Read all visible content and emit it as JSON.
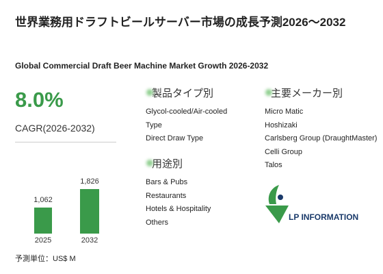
{
  "header": {
    "title": "世界業務用ドラフトビールサーバー市場の成長予測2026～2032",
    "subtitle": "Global Commercial Draft Beer Machine Market Growth 2026-2032"
  },
  "cagr": {
    "value": "8.0%",
    "label": "CAGR(2026-2032)"
  },
  "chart_data": {
    "type": "bar",
    "categories": [
      "2025",
      "2032"
    ],
    "values": [
      1062,
      1826
    ],
    "value_labels": [
      "1,062",
      "1,826"
    ],
    "color": "#3a9a4a",
    "unit_note": "予測単位：US$ M"
  },
  "segments": [
    {
      "title": "製品タイプ別",
      "items": [
        "Glycol-cooled/Air-cooled Type",
        "Direct Draw Type"
      ]
    },
    {
      "title": "用途別",
      "items": [
        "Bars & Pubs",
        "Restaurants",
        "Hotels & Hospitality",
        "Others"
      ]
    },
    {
      "title": "主要メーカー別",
      "items": [
        "Micro Matic",
        "Hoshizaki",
        "Carlsberg Group (DraughtMaster)",
        "Celli Group",
        "Talos"
      ]
    }
  ],
  "logo": {
    "text": "LP INFORMATION"
  }
}
